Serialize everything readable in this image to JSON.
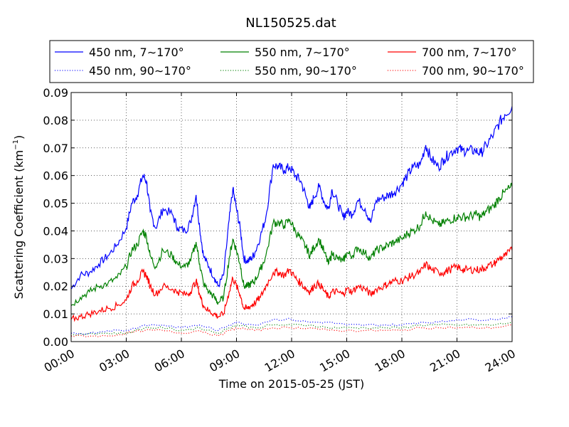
{
  "chart_data": {
    "type": "line",
    "title": "NL150525.dat",
    "xlabel": "Time on 2015-05-25 (JST)",
    "ylabel_main": "Scattering Coefficient (km",
    "ylabel_sup": "−1",
    "ylabel_close": ")",
    "xlim": [
      0,
      24
    ],
    "ylim": [
      0,
      0.09
    ],
    "grid": true,
    "legend_placement": "top",
    "x_ticks": [
      0,
      3,
      6,
      9,
      12,
      15,
      18,
      21,
      24
    ],
    "x_tick_labels": [
      "00:00",
      "03:00",
      "06:00",
      "09:00",
      "12:00",
      "15:00",
      "18:00",
      "21:00",
      "24:00"
    ],
    "y_ticks": [
      0,
      0.01,
      0.02,
      0.03,
      0.04,
      0.05,
      0.06,
      0.07,
      0.08,
      0.09
    ],
    "y_tick_labels": [
      "0.00",
      "0.01",
      "0.02",
      "0.03",
      "0.04",
      "0.05",
      "0.06",
      "0.07",
      "0.08",
      "0.09"
    ],
    "series": [
      {
        "name": "450 nm, 7∼170°",
        "color": "#0000ff",
        "style": "solid",
        "x": [
          0,
          0.5,
          1,
          1.5,
          2,
          2.5,
          3,
          3.3,
          3.6,
          3.9,
          4.1,
          4.3,
          4.6,
          5,
          5.5,
          5.8,
          6.2,
          6.5,
          6.8,
          7,
          7.2,
          7.5,
          7.8,
          8,
          8.3,
          8.6,
          8.8,
          9,
          9.2,
          9.4,
          9.6,
          9.8,
          10,
          10.3,
          10.6,
          11,
          11.3,
          11.6,
          11.9,
          12.2,
          12.5,
          12.8,
          13,
          13.2,
          13.5,
          13.8,
          14,
          14.2,
          14.5,
          14.8,
          15,
          15.3,
          15.6,
          16,
          16.3,
          16.6,
          17,
          17.3,
          17.6,
          18,
          18.3,
          18.6,
          19,
          19.3,
          19.6,
          20,
          20.3,
          20.6,
          21,
          21.3,
          21.6,
          22,
          22.3,
          22.6,
          23,
          23.3,
          23.6,
          24
        ],
        "y": [
          0.019,
          0.024,
          0.025,
          0.028,
          0.031,
          0.035,
          0.041,
          0.05,
          0.053,
          0.06,
          0.058,
          0.047,
          0.041,
          0.048,
          0.046,
          0.041,
          0.04,
          0.043,
          0.053,
          0.041,
          0.031,
          0.027,
          0.023,
          0.02,
          0.024,
          0.044,
          0.055,
          0.048,
          0.041,
          0.03,
          0.029,
          0.03,
          0.032,
          0.038,
          0.045,
          0.064,
          0.063,
          0.062,
          0.063,
          0.06,
          0.058,
          0.052,
          0.048,
          0.052,
          0.056,
          0.05,
          0.048,
          0.055,
          0.05,
          0.045,
          0.047,
          0.046,
          0.051,
          0.048,
          0.043,
          0.051,
          0.052,
          0.053,
          0.054,
          0.057,
          0.06,
          0.063,
          0.064,
          0.071,
          0.066,
          0.063,
          0.066,
          0.068,
          0.07,
          0.069,
          0.069,
          0.069,
          0.068,
          0.071,
          0.075,
          0.079,
          0.082,
          0.085
        ]
      },
      {
        "name": "550 nm, 7∼170°",
        "color": "#008000",
        "style": "solid",
        "x": [
          0,
          0.5,
          1,
          1.5,
          2,
          2.5,
          3,
          3.3,
          3.6,
          3.9,
          4.1,
          4.3,
          4.6,
          5,
          5.5,
          5.8,
          6.2,
          6.5,
          6.8,
          7,
          7.2,
          7.5,
          7.8,
          8,
          8.3,
          8.6,
          8.8,
          9,
          9.2,
          9.4,
          9.6,
          9.8,
          10,
          10.3,
          10.6,
          11,
          11.3,
          11.6,
          11.9,
          12.2,
          12.5,
          12.8,
          13,
          13.2,
          13.5,
          13.8,
          14,
          14.2,
          14.5,
          14.8,
          15,
          15.3,
          15.6,
          16,
          16.3,
          16.6,
          17,
          17.3,
          17.6,
          18,
          18.3,
          18.6,
          19,
          19.3,
          19.6,
          20,
          20.3,
          20.6,
          21,
          21.3,
          21.6,
          22,
          22.3,
          22.6,
          23,
          23.3,
          23.6,
          24
        ],
        "y": [
          0.013,
          0.016,
          0.018,
          0.02,
          0.021,
          0.023,
          0.027,
          0.033,
          0.035,
          0.04,
          0.038,
          0.031,
          0.027,
          0.033,
          0.031,
          0.028,
          0.027,
          0.029,
          0.036,
          0.028,
          0.021,
          0.018,
          0.016,
          0.014,
          0.016,
          0.03,
          0.037,
          0.033,
          0.028,
          0.02,
          0.02,
          0.021,
          0.022,
          0.026,
          0.031,
          0.043,
          0.043,
          0.042,
          0.044,
          0.04,
          0.037,
          0.034,
          0.031,
          0.034,
          0.037,
          0.032,
          0.028,
          0.032,
          0.03,
          0.029,
          0.032,
          0.031,
          0.034,
          0.032,
          0.03,
          0.033,
          0.034,
          0.035,
          0.036,
          0.037,
          0.039,
          0.04,
          0.042,
          0.047,
          0.044,
          0.042,
          0.043,
          0.044,
          0.045,
          0.045,
          0.045,
          0.046,
          0.045,
          0.047,
          0.049,
          0.052,
          0.054,
          0.056
        ]
      },
      {
        "name": "700 nm, 7∼170°",
        "color": "#ff0000",
        "style": "solid",
        "x": [
          0,
          0.5,
          1,
          1.5,
          2,
          2.5,
          3,
          3.3,
          3.6,
          3.9,
          4.1,
          4.3,
          4.6,
          5,
          5.5,
          5.8,
          6.2,
          6.5,
          6.8,
          7,
          7.2,
          7.5,
          7.8,
          8,
          8.3,
          8.6,
          8.8,
          9,
          9.2,
          9.4,
          9.6,
          9.8,
          10,
          10.3,
          10.6,
          11,
          11.3,
          11.6,
          11.9,
          12.2,
          12.5,
          12.8,
          13,
          13.2,
          13.5,
          13.8,
          14,
          14.2,
          14.5,
          14.8,
          15,
          15.3,
          15.6,
          16,
          16.3,
          16.6,
          17,
          17.3,
          17.6,
          18,
          18.3,
          18.6,
          19,
          19.3,
          19.6,
          20,
          20.3,
          20.6,
          21,
          21.3,
          21.6,
          22,
          22.3,
          22.6,
          23,
          23.3,
          23.6,
          24
        ],
        "y": [
          0.008,
          0.009,
          0.01,
          0.011,
          0.012,
          0.013,
          0.015,
          0.02,
          0.022,
          0.025,
          0.024,
          0.02,
          0.017,
          0.02,
          0.019,
          0.018,
          0.017,
          0.018,
          0.022,
          0.017,
          0.013,
          0.011,
          0.01,
          0.009,
          0.01,
          0.018,
          0.023,
          0.02,
          0.017,
          0.012,
          0.012,
          0.013,
          0.014,
          0.016,
          0.02,
          0.025,
          0.025,
          0.024,
          0.026,
          0.023,
          0.021,
          0.019,
          0.018,
          0.02,
          0.021,
          0.018,
          0.016,
          0.018,
          0.018,
          0.017,
          0.019,
          0.018,
          0.02,
          0.019,
          0.017,
          0.019,
          0.02,
          0.021,
          0.022,
          0.022,
          0.023,
          0.024,
          0.025,
          0.028,
          0.026,
          0.025,
          0.025,
          0.026,
          0.027,
          0.026,
          0.026,
          0.026,
          0.026,
          0.027,
          0.028,
          0.03,
          0.031,
          0.033
        ]
      },
      {
        "name": "450 nm, 90∼170°",
        "color": "#0000ff",
        "style": "dotted",
        "x": [
          0,
          1,
          2,
          3,
          4,
          5,
          6,
          7,
          8,
          8.6,
          9,
          10,
          11,
          12,
          13,
          14,
          15,
          16,
          17,
          18,
          19,
          20,
          21,
          22,
          23,
          24
        ],
        "y": [
          0.003,
          0.003,
          0.004,
          0.004,
          0.006,
          0.006,
          0.005,
          0.006,
          0.004,
          0.006,
          0.007,
          0.006,
          0.008,
          0.008,
          0.007,
          0.007,
          0.006,
          0.006,
          0.006,
          0.006,
          0.007,
          0.007,
          0.008,
          0.008,
          0.008,
          0.009
        ]
      },
      {
        "name": "550 nm, 90∼170°",
        "color": "#008000",
        "style": "dotted",
        "x": [
          0,
          1,
          2,
          3,
          4,
          5,
          6,
          7,
          8,
          8.6,
          9,
          10,
          11,
          12,
          13,
          14,
          15,
          16,
          17,
          18,
          19,
          20,
          21,
          22,
          23,
          24
        ],
        "y": [
          0.002,
          0.003,
          0.003,
          0.003,
          0.005,
          0.005,
          0.004,
          0.005,
          0.003,
          0.005,
          0.006,
          0.005,
          0.006,
          0.006,
          0.006,
          0.005,
          0.005,
          0.005,
          0.005,
          0.005,
          0.006,
          0.006,
          0.006,
          0.006,
          0.006,
          0.007
        ]
      },
      {
        "name": "700 nm, 90∼170°",
        "color": "#ff0000",
        "style": "dotted",
        "x": [
          0,
          1,
          2,
          3,
          4,
          5,
          6,
          7,
          8,
          8.6,
          9,
          10,
          11,
          12,
          13,
          14,
          15,
          16,
          17,
          18,
          19,
          20,
          21,
          22,
          23,
          24
        ],
        "y": [
          0.002,
          0.002,
          0.002,
          0.003,
          0.004,
          0.004,
          0.003,
          0.004,
          0.002,
          0.004,
          0.005,
          0.004,
          0.005,
          0.005,
          0.005,
          0.004,
          0.004,
          0.004,
          0.004,
          0.004,
          0.005,
          0.005,
          0.005,
          0.005,
          0.005,
          0.006
        ]
      }
    ],
    "legend_order": [
      0,
      1,
      2,
      3,
      4,
      5
    ]
  }
}
